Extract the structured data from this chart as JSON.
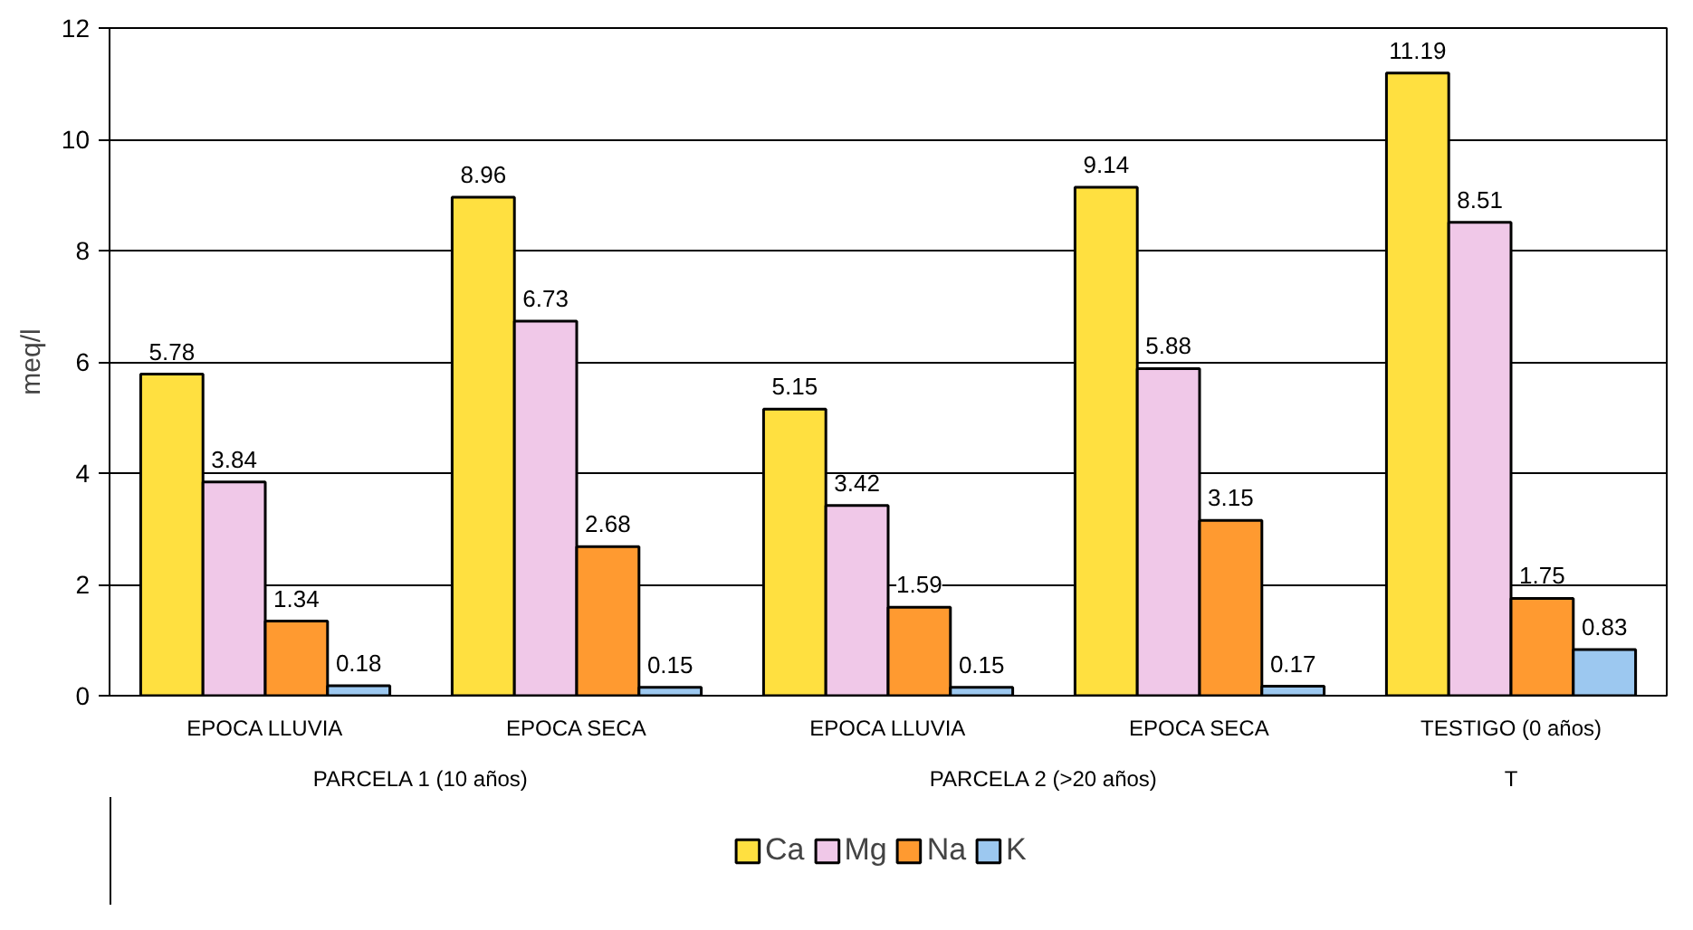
{
  "chart_data": {
    "type": "bar",
    "ylabel": "meq/l",
    "categories": [
      "EPOCA LLUVIA",
      "EPOCA SECA",
      "EPOCA LLUVIA",
      "EPOCA SECA",
      "TESTIGO (0 años)"
    ],
    "series": [
      {
        "name": "Ca",
        "color": "#ffe040",
        "values": [
          5.78,
          8.96,
          5.15,
          9.14,
          11.19
        ]
      },
      {
        "name": "Mg",
        "color": "#f0c8e8",
        "values": [
          3.84,
          6.73,
          3.42,
          5.88,
          8.51
        ]
      },
      {
        "name": "Na",
        "color": "#ff9a30",
        "values": [
          1.34,
          2.68,
          1.59,
          3.15,
          1.75
        ]
      },
      {
        "name": "K",
        "color": "#9cc8f0",
        "values": [
          0.18,
          0.15,
          0.15,
          0.17,
          0.83
        ]
      }
    ],
    "ylim": [
      0,
      12
    ],
    "yticks": [
      0,
      2,
      4,
      6,
      8,
      10,
      12
    ],
    "grid": "y",
    "legend": "bottom",
    "data_labels": true,
    "annotations": [
      "PARCELA 1 (10 años)",
      "PARCELA 2 (>20 años)",
      "T"
    ]
  }
}
